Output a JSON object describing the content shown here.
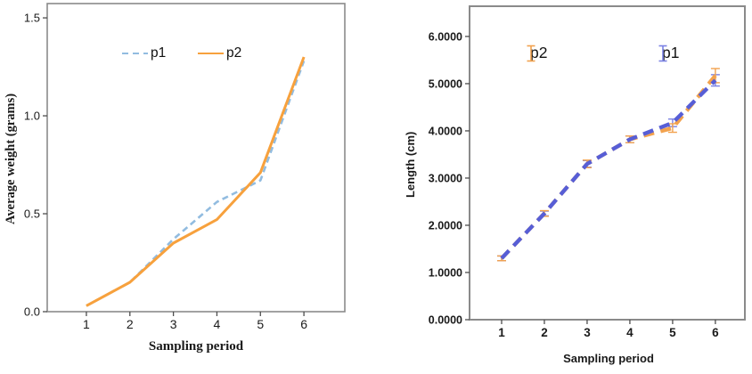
{
  "figure": {
    "background": "#FFFFFF",
    "plot_border_color": "#8A8A8A",
    "tick_color": "#4D4D4D",
    "text_color": "#1A1A1A"
  },
  "chart_data": [
    {
      "type": "line",
      "title": "",
      "xlabel": "Sampling period",
      "ylabel": "Average weight (grams)",
      "x": [
        1,
        2,
        3,
        4,
        5,
        6
      ],
      "xlim": [
        0.1,
        6.94
      ],
      "ylim": [
        0,
        1.573
      ],
      "xtick_labels": [
        "1",
        "2",
        "3",
        "4",
        "5",
        "6"
      ],
      "ytick_values": [
        0.0,
        0.5,
        1.0,
        1.5
      ],
      "ytick_labels": [
        "0.0",
        "0.5",
        "1.0",
        "1.5"
      ],
      "grid": false,
      "legend_position": "top-inside",
      "series": [
        {
          "name": "p1",
          "style": "dashed",
          "color": "#92BCE0",
          "values": [
            0.03,
            0.15,
            0.37,
            0.56,
            0.67,
            1.28
          ]
        },
        {
          "name": "p2",
          "style": "solid",
          "color": "#F7A13D",
          "values": [
            0.03,
            0.15,
            0.35,
            0.47,
            0.71,
            1.3
          ]
        }
      ]
    },
    {
      "type": "line-errorbar",
      "title": "",
      "xlabel": "Sampling period",
      "ylabel": "Length (cm)",
      "x": [
        1,
        2,
        3,
        4,
        5,
        6
      ],
      "xlim": [
        0.25,
        6.69
      ],
      "ylim": [
        0,
        6.64
      ],
      "xtick_labels": [
        "1",
        "2",
        "3",
        "4",
        "5",
        "6"
      ],
      "ytick_values": [
        0,
        1,
        2,
        3,
        4,
        5,
        6
      ],
      "ytick_labels": [
        "0.0000",
        "1.0000",
        "2.0000",
        "3.0000",
        "4.0000",
        "5.0000",
        "6.0000"
      ],
      "grid": false,
      "legend_position": "top-inside",
      "series": [
        {
          "name": "p2",
          "style": "dashed",
          "color": "#F2A24E",
          "error_color": "#F2A24E",
          "values": [
            1.3,
            2.25,
            3.3,
            3.82,
            4.06,
            5.17
          ],
          "errors": [
            0.05,
            0.06,
            0.08,
            0.07,
            0.09,
            0.15
          ]
        },
        {
          "name": "p1",
          "style": "dashed",
          "color": "#575ED6",
          "error_color": "#7B82E4",
          "values": [
            1.3,
            2.25,
            3.3,
            3.82,
            4.17,
            5.07
          ],
          "errors": [
            0.05,
            0.05,
            0.07,
            0.07,
            0.08,
            0.12
          ]
        }
      ]
    }
  ]
}
